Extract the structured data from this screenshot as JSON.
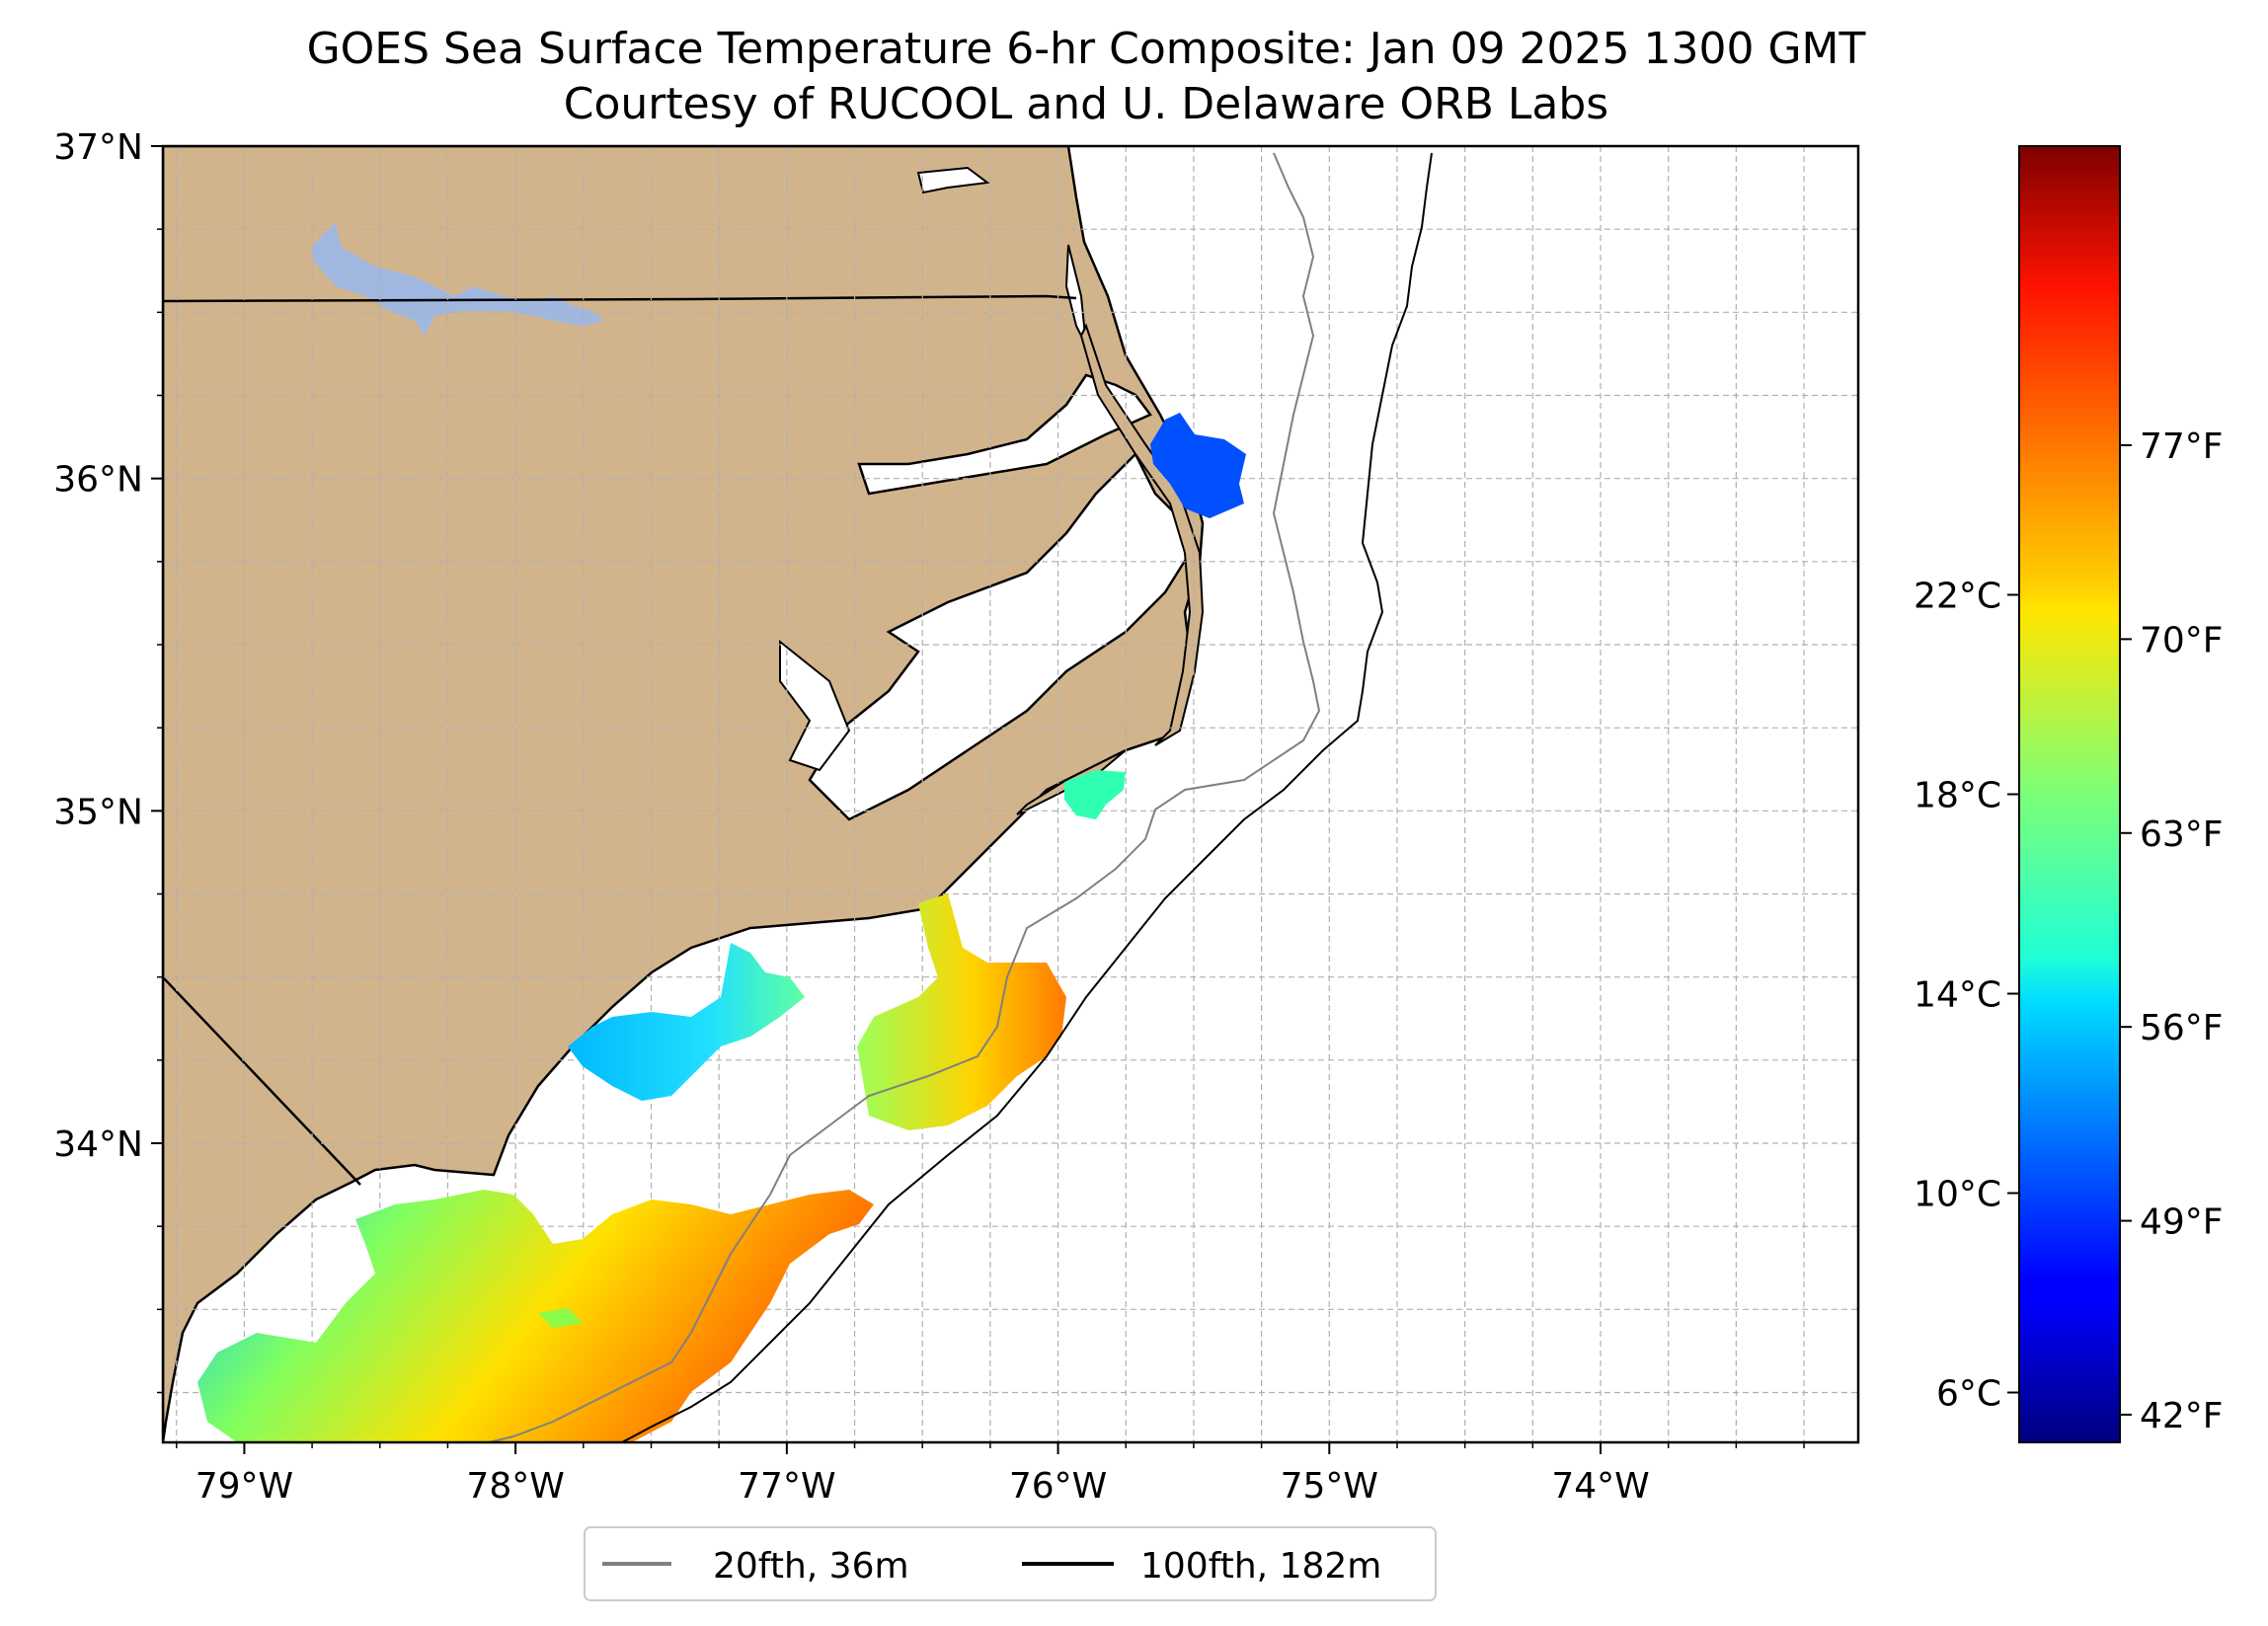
{
  "title": {
    "line1": "GOES Sea Surface Temperature 6-hr Composite: Jan 09 2025 1300 GMT",
    "line2": "Courtesy of RUCOOL and U. Delaware ORB Labs"
  },
  "map": {
    "lon_range": [
      -79.3,
      -73.05
    ],
    "lat_range": [
      33.1,
      37.0
    ],
    "lon_ticks": [
      {
        "value": -79,
        "label": "79°W"
      },
      {
        "value": -78,
        "label": "78°W"
      },
      {
        "value": -77,
        "label": "77°W"
      },
      {
        "value": -76,
        "label": "76°W"
      },
      {
        "value": -75,
        "label": "75°W"
      },
      {
        "value": -74,
        "label": "74°W"
      }
    ],
    "lat_ticks": [
      {
        "value": 34,
        "label": "34°N"
      },
      {
        "value": 35,
        "label": "35°N"
      },
      {
        "value": 36,
        "label": "36°N"
      },
      {
        "value": 37,
        "label": "37°N"
      }
    ],
    "grid": true,
    "land_color": "#d2b48c",
    "lake_color": "#a0b8e0"
  },
  "legend": {
    "placement": "bottom-center",
    "entries": [
      {
        "label": "20fth, 36m",
        "color": "#808080"
      },
      {
        "label": "100fth, 182m",
        "color": "#000000"
      }
    ]
  },
  "colorbar": {
    "colormap": "jet",
    "range_c": [
      5,
      31
    ],
    "celsius_ticks": [
      {
        "value": 6,
        "label": "6°C"
      },
      {
        "value": 10,
        "label": "10°C"
      },
      {
        "value": 14,
        "label": "14°C"
      },
      {
        "value": 18,
        "label": "18°C"
      },
      {
        "value": 22,
        "label": "22°C"
      }
    ],
    "fahrenheit_ticks": [
      {
        "value": 42,
        "label": "42°F"
      },
      {
        "value": 49,
        "label": "49°F"
      },
      {
        "value": 56,
        "label": "56°F"
      },
      {
        "value": 63,
        "label": "63°F"
      },
      {
        "value": 70,
        "label": "70°F"
      },
      {
        "value": 77,
        "label": "77°F"
      }
    ]
  }
}
